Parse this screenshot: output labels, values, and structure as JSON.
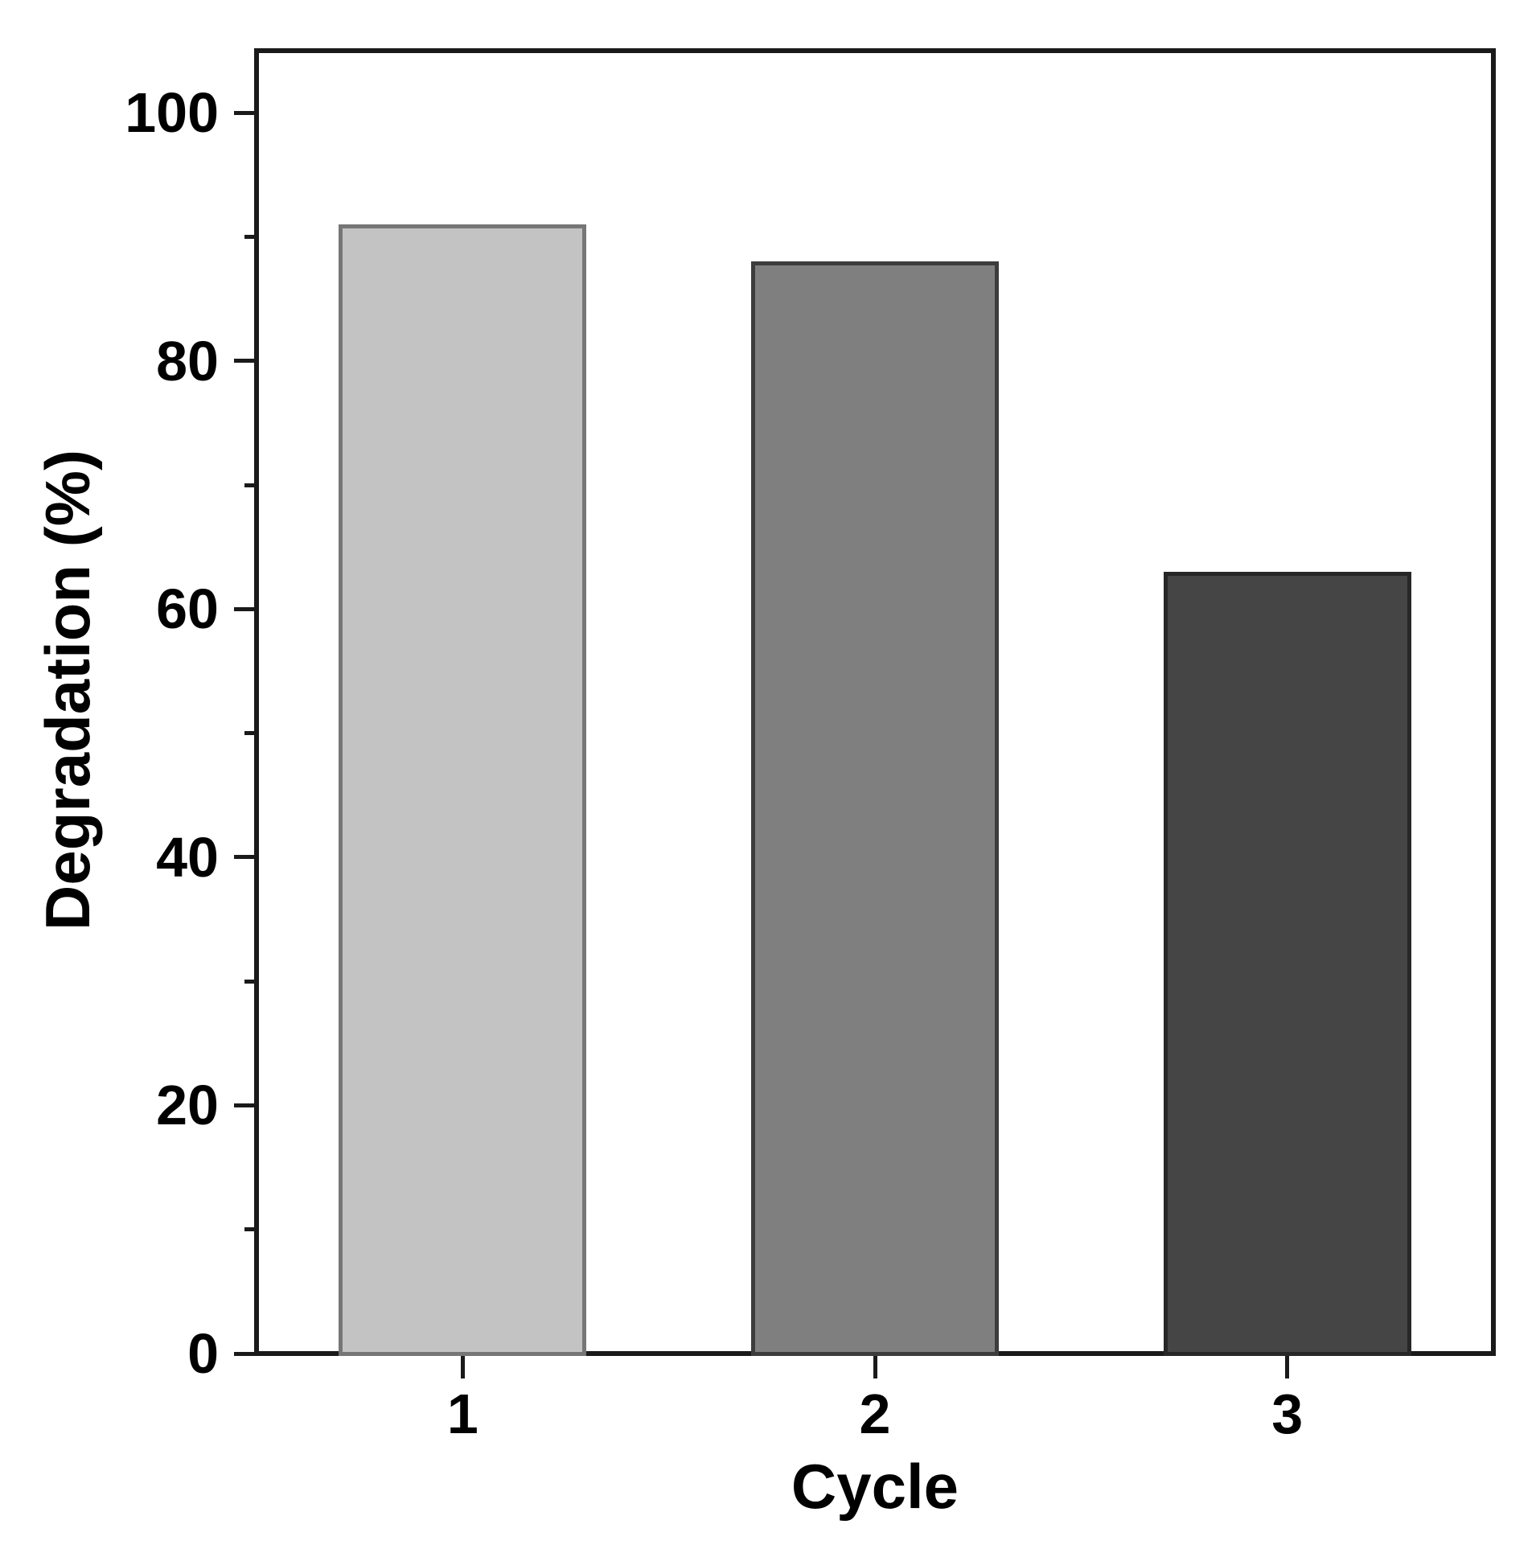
{
  "figure": {
    "background": "#ffffff",
    "axis_color": "#1a1a1a",
    "text_color": "#000000"
  },
  "chart_data": {
    "type": "bar",
    "title": "",
    "xlabel": "Cycle",
    "ylabel": "Degradation (%)",
    "categories": [
      "1",
      "2",
      "3"
    ],
    "values": [
      91,
      88,
      63
    ],
    "ylim": [
      0,
      105
    ],
    "yticks_major": [
      0,
      20,
      40,
      60,
      80,
      100
    ],
    "yticks_minor": [
      10,
      30,
      50,
      70,
      90
    ],
    "grid": false,
    "legend": "none",
    "bars": [
      {
        "category": "1",
        "value": 91,
        "fill": "#c3c3c3",
        "border": "#767676"
      },
      {
        "category": "2",
        "value": 88,
        "fill": "#7f7f7f",
        "border": "#3c3c3c"
      },
      {
        "category": "3",
        "value": 63,
        "fill": "#454545",
        "border": "#272727"
      }
    ]
  }
}
